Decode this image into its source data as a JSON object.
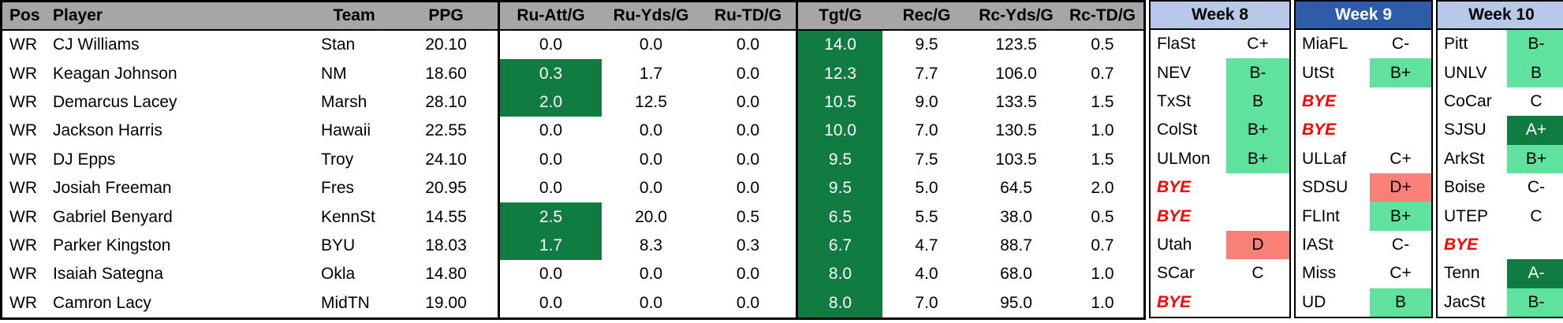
{
  "colors": {
    "header_gray": "#A6A6A6",
    "dark_green": "#107C41",
    "light_green": "#5FE29E",
    "salmon": "#F98076",
    "week_blue_light": "#B7C8E8",
    "week_blue_dark": "#2F5CA7",
    "bye_red": "#FF0000"
  },
  "table": {
    "headers": [
      "Pos",
      "Player",
      "Team",
      "PPG",
      "Ru-Att/G",
      "Ru-Yds/G",
      "Ru-TD/G",
      "Tgt/G",
      "Rec/G",
      "Rc-Yds/G",
      "Rc-TD/G"
    ],
    "weeks": [
      "Week 8",
      "Week 9",
      "Week 10"
    ],
    "rows": [
      {
        "pos": "WR",
        "player": "CJ Williams",
        "team": "Stan",
        "ppg": "20.10",
        "stats": [
          {
            "v": "0.0"
          },
          {
            "v": "0.0"
          },
          {
            "v": "0.0"
          },
          {
            "v": "14.0",
            "hl": "dark"
          },
          {
            "v": "9.5"
          },
          {
            "v": "123.5"
          },
          {
            "v": "0.5"
          }
        ],
        "weeks": [
          {
            "opp": "FlaSt",
            "grade": "C+"
          },
          {
            "opp": "MiaFL",
            "grade": "C-"
          },
          {
            "opp": "Pitt",
            "grade": "B-",
            "hl": "light"
          }
        ]
      },
      {
        "pos": "WR",
        "player": "Keagan Johnson",
        "team": "NM",
        "ppg": "18.60",
        "stats": [
          {
            "v": "0.3",
            "hl": "dark"
          },
          {
            "v": "1.7"
          },
          {
            "v": "0.0"
          },
          {
            "v": "12.3",
            "hl": "dark"
          },
          {
            "v": "7.7"
          },
          {
            "v": "106.0"
          },
          {
            "v": "0.7"
          }
        ],
        "weeks": [
          {
            "opp": "NEV",
            "grade": "B-",
            "hl": "light"
          },
          {
            "opp": "UtSt",
            "grade": "B+",
            "hl": "light"
          },
          {
            "opp": "UNLV",
            "grade": "B",
            "hl": "light"
          }
        ]
      },
      {
        "pos": "WR",
        "player": "Demarcus Lacey",
        "team": "Marsh",
        "ppg": "28.10",
        "stats": [
          {
            "v": "2.0",
            "hl": "dark"
          },
          {
            "v": "12.5"
          },
          {
            "v": "0.0"
          },
          {
            "v": "10.5",
            "hl": "dark"
          },
          {
            "v": "9.0"
          },
          {
            "v": "133.5"
          },
          {
            "v": "1.5"
          }
        ],
        "weeks": [
          {
            "opp": "TxSt",
            "grade": "B",
            "hl": "light"
          },
          {
            "bye": true,
            "opp": "BYE",
            "grade": ""
          },
          {
            "opp": "CoCar",
            "grade": "C"
          }
        ]
      },
      {
        "pos": "WR",
        "player": "Jackson Harris",
        "team": "Hawaii",
        "ppg": "22.55",
        "stats": [
          {
            "v": "0.0"
          },
          {
            "v": "0.0"
          },
          {
            "v": "0.0"
          },
          {
            "v": "10.0",
            "hl": "dark"
          },
          {
            "v": "7.0"
          },
          {
            "v": "130.5"
          },
          {
            "v": "1.0"
          }
        ],
        "weeks": [
          {
            "opp": "ColSt",
            "grade": "B+",
            "hl": "light"
          },
          {
            "bye": true,
            "opp": "BYE",
            "grade": ""
          },
          {
            "opp": "SJSU",
            "grade": "A+",
            "hl": "dark"
          }
        ]
      },
      {
        "pos": "WR",
        "player": "DJ Epps",
        "team": "Troy",
        "ppg": "24.10",
        "stats": [
          {
            "v": "0.0"
          },
          {
            "v": "0.0"
          },
          {
            "v": "0.0"
          },
          {
            "v": "9.5",
            "hl": "dark"
          },
          {
            "v": "7.5"
          },
          {
            "v": "103.5"
          },
          {
            "v": "1.5"
          }
        ],
        "weeks": [
          {
            "opp": "ULMon",
            "grade": "B+",
            "hl": "light"
          },
          {
            "opp": "ULLaf",
            "grade": "C+"
          },
          {
            "opp": "ArkSt",
            "grade": "B+",
            "hl": "light"
          }
        ]
      },
      {
        "pos": "WR",
        "player": "Josiah Freeman",
        "team": "Fres",
        "ppg": "20.95",
        "stats": [
          {
            "v": "0.0"
          },
          {
            "v": "0.0"
          },
          {
            "v": "0.0"
          },
          {
            "v": "9.5",
            "hl": "dark"
          },
          {
            "v": "5.0"
          },
          {
            "v": "64.5"
          },
          {
            "v": "2.0"
          }
        ],
        "weeks": [
          {
            "bye": true,
            "opp": "BYE",
            "grade": ""
          },
          {
            "opp": "SDSU",
            "grade": "D+",
            "hl": "red"
          },
          {
            "opp": "Boise",
            "grade": "C-"
          }
        ]
      },
      {
        "pos": "WR",
        "player": "Gabriel Benyard",
        "team": "KennSt",
        "ppg": "14.55",
        "stats": [
          {
            "v": "2.5",
            "hl": "dark"
          },
          {
            "v": "20.0"
          },
          {
            "v": "0.5"
          },
          {
            "v": "6.5",
            "hl": "dark"
          },
          {
            "v": "5.5"
          },
          {
            "v": "38.0"
          },
          {
            "v": "0.5"
          }
        ],
        "weeks": [
          {
            "bye": true,
            "opp": "BYE",
            "grade": ""
          },
          {
            "opp": "FLInt",
            "grade": "B+",
            "hl": "light"
          },
          {
            "opp": "UTEP",
            "grade": "C"
          }
        ]
      },
      {
        "pos": "WR",
        "player": "Parker Kingston",
        "team": "BYU",
        "ppg": "18.03",
        "stats": [
          {
            "v": "1.7",
            "hl": "dark"
          },
          {
            "v": "8.3"
          },
          {
            "v": "0.3"
          },
          {
            "v": "6.7",
            "hl": "dark"
          },
          {
            "v": "4.7"
          },
          {
            "v": "88.7"
          },
          {
            "v": "0.7"
          }
        ],
        "weeks": [
          {
            "opp": "Utah",
            "grade": "D",
            "hl": "red"
          },
          {
            "opp": "IASt",
            "grade": "C-"
          },
          {
            "bye": true,
            "opp": "BYE",
            "grade": ""
          }
        ]
      },
      {
        "pos": "WR",
        "player": "Isaiah Sategna",
        "team": "Okla",
        "ppg": "14.80",
        "stats": [
          {
            "v": "0.0"
          },
          {
            "v": "0.0"
          },
          {
            "v": "0.0"
          },
          {
            "v": "8.0",
            "hl": "dark"
          },
          {
            "v": "4.0"
          },
          {
            "v": "68.0"
          },
          {
            "v": "1.0"
          }
        ],
        "weeks": [
          {
            "opp": "SCar",
            "grade": "C"
          },
          {
            "opp": "Miss",
            "grade": "C+"
          },
          {
            "opp": "Tenn",
            "grade": "A-",
            "hl": "dark"
          }
        ]
      },
      {
        "pos": "WR",
        "player": "Camron Lacy",
        "team": "MidTN",
        "ppg": "19.00",
        "stats": [
          {
            "v": "0.0"
          },
          {
            "v": "0.0"
          },
          {
            "v": "0.0"
          },
          {
            "v": "8.0",
            "hl": "dark"
          },
          {
            "v": "7.0"
          },
          {
            "v": "95.0"
          },
          {
            "v": "1.0"
          }
        ],
        "weeks": [
          {
            "bye": true,
            "opp": "BYE",
            "grade": ""
          },
          {
            "opp": "UD",
            "grade": "B",
            "hl": "light"
          },
          {
            "opp": "JacSt",
            "grade": "B-",
            "hl": "light"
          }
        ]
      }
    ]
  }
}
